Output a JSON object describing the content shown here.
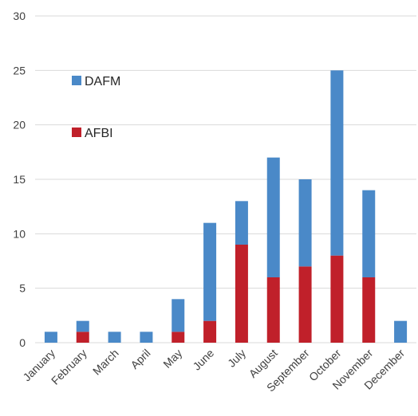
{
  "chart_data": {
    "type": "bar",
    "stacked": true,
    "categories": [
      "January",
      "February",
      "March",
      "April",
      "May",
      "June",
      "July",
      "August",
      "September",
      "October",
      "November",
      "December"
    ],
    "series": [
      {
        "name": "AFBI",
        "color": "#c0202a",
        "values": [
          0,
          1,
          0,
          0,
          1,
          2,
          9,
          6,
          7,
          8,
          6,
          0
        ]
      },
      {
        "name": "DAFM",
        "color": "#4a89c8",
        "values": [
          1,
          1,
          1,
          1,
          3,
          9,
          4,
          11,
          8,
          17,
          8,
          2
        ]
      }
    ],
    "ylim": [
      0,
      30
    ],
    "yticks": [
      0,
      5,
      10,
      15,
      20,
      25,
      30
    ],
    "grid": true,
    "legend": "upper-left inside plot",
    "legend_order": [
      "DAFM",
      "AFBI"
    ]
  }
}
